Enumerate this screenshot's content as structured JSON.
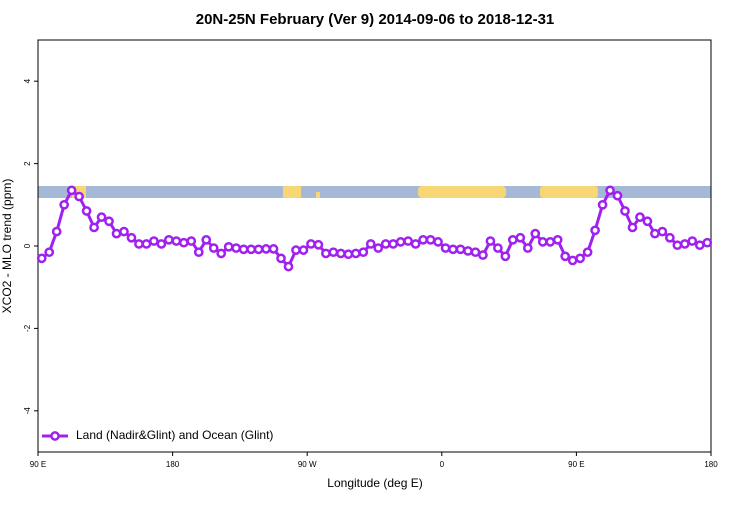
{
  "chart_data": {
    "type": "line",
    "title": "20N-25N February (Ver 9)   2014-09-06 to 2018-12-31",
    "x_label": "Longitude (deg E)",
    "y_label": "XCO2 - MLO trend (ppm)",
    "xlim": [
      90,
      540
    ],
    "ylim": [
      -5,
      5
    ],
    "xticks": [
      {
        "value": 90,
        "label": "90 E"
      },
      {
        "value": 180,
        "label": "180"
      },
      {
        "value": 270,
        "label": "90 W"
      },
      {
        "value": 360,
        "label": "0"
      },
      {
        "value": 450,
        "label": "90 E"
      },
      {
        "value": 540,
        "label": "180"
      }
    ],
    "yticks": [
      -4,
      -2,
      0,
      2,
      4
    ],
    "legend": "bottom-left",
    "x": [
      92.5,
      97.5,
      102.5,
      107.5,
      112.5,
      117.5,
      122.5,
      127.5,
      132.5,
      137.5,
      142.5,
      147.5,
      152.5,
      157.5,
      162.5,
      167.5,
      172.5,
      177.5,
      182.5,
      187.5,
      192.5,
      197.5,
      202.5,
      207.5,
      212.5,
      217.5,
      222.5,
      227.5,
      232.5,
      237.5,
      242.5,
      247.5,
      252.5,
      257.5,
      262.5,
      267.5,
      272.5,
      277.5,
      282.5,
      287.5,
      292.5,
      297.5,
      302.5,
      307.5,
      312.5,
      317.5,
      322.5,
      327.5,
      332.5,
      337.5,
      342.5,
      347.5,
      352.5,
      357.5,
      362.5,
      367.5,
      372.5,
      377.5,
      382.5,
      387.5,
      392.5,
      397.5,
      402.5,
      407.5,
      412.5,
      417.5,
      422.5,
      427.5,
      432.5,
      437.5,
      442.5,
      447.5,
      452.5,
      457.5,
      462.5,
      467.5,
      472.5,
      477.5,
      482.5,
      487.5,
      492.5,
      497.5,
      502.5,
      507.5,
      512.5,
      517.5,
      522.5,
      527.5,
      532.5,
      537.5
    ],
    "series": [
      {
        "name": "Land (Nadir&Glint) and Ocean (Glint)",
        "color": "#a020f0",
        "values": [
          -0.3,
          -0.15,
          0.35,
          1.0,
          1.35,
          1.2,
          0.85,
          0.45,
          0.7,
          0.6,
          0.3,
          0.35,
          0.2,
          0.05,
          0.05,
          0.12,
          0.05,
          0.15,
          0.12,
          0.08,
          0.12,
          -0.15,
          0.15,
          -0.05,
          -0.18,
          -0.02,
          -0.05,
          -0.08,
          -0.08,
          -0.08,
          -0.07,
          -0.07,
          -0.3,
          -0.5,
          -0.1,
          -0.1,
          0.05,
          0.03,
          -0.18,
          -0.15,
          -0.18,
          -0.2,
          -0.18,
          -0.15,
          0.05,
          -0.05,
          0.05,
          0.05,
          0.1,
          0.12,
          0.05,
          0.15,
          0.15,
          0.1,
          -0.05,
          -0.08,
          -0.08,
          -0.12,
          -0.15,
          -0.22,
          0.12,
          -0.05,
          -0.25,
          0.15,
          0.2,
          -0.05,
          0.3,
          0.1,
          0.1,
          0.15,
          -0.25,
          -0.35,
          -0.3,
          -0.15,
          0.38,
          1.0,
          1.35,
          1.22,
          0.85,
          0.45,
          0.7,
          0.6,
          0.3,
          0.35,
          0.2,
          0.02,
          0.05,
          0.12,
          0.02,
          0.08
        ]
      }
    ]
  }
}
